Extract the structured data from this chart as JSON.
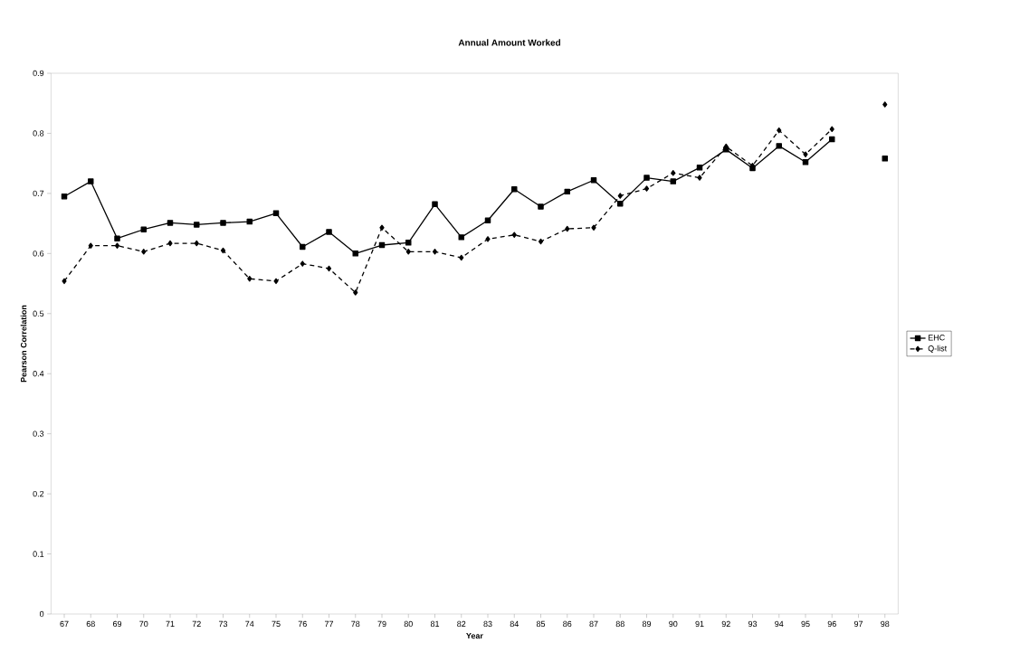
{
  "chart_data": {
    "type": "line",
    "title": "Annual Amount Worked",
    "xlabel": "Year",
    "ylabel": "Pearson Correlation",
    "categories": [
      "67",
      "68",
      "69",
      "70",
      "71",
      "72",
      "73",
      "74",
      "75",
      "76",
      "77",
      "78",
      "79",
      "80",
      "81",
      "82",
      "83",
      "84",
      "85",
      "86",
      "87",
      "88",
      "89",
      "90",
      "91",
      "92",
      "93",
      "94",
      "95",
      "96",
      "97",
      "98"
    ],
    "series": [
      {
        "name": "EHC",
        "color": "#000000",
        "marker": "square",
        "line_style": "solid",
        "values": [
          0.695,
          0.72,
          0.625,
          0.64,
          0.651,
          0.648,
          0.651,
          0.653,
          0.667,
          0.611,
          0.636,
          0.6,
          0.614,
          0.618,
          0.682,
          0.627,
          0.655,
          0.707,
          0.678,
          0.703,
          0.722,
          0.683,
          0.726,
          0.72,
          0.743,
          0.773,
          0.742,
          0.779,
          0.752,
          0.79,
          null,
          0.758
        ]
      },
      {
        "name": "Q-list",
        "color": "#000000",
        "marker": "diamond",
        "line_style": "dashed",
        "values": [
          0.554,
          0.613,
          0.613,
          0.603,
          0.617,
          0.617,
          0.605,
          0.558,
          0.554,
          0.583,
          0.575,
          0.535,
          0.643,
          0.603,
          0.603,
          0.593,
          0.624,
          0.631,
          0.62,
          0.641,
          0.643,
          0.696,
          0.708,
          0.734,
          0.726,
          0.778,
          0.746,
          0.805,
          0.765,
          0.807,
          null,
          0.848
        ]
      }
    ],
    "ylim": [
      0,
      0.9
    ],
    "yticks": [
      0,
      0.1,
      0.2,
      0.3,
      0.4,
      0.5,
      0.6,
      0.7,
      0.8,
      0.9
    ],
    "grid": false,
    "legend": "right"
  }
}
